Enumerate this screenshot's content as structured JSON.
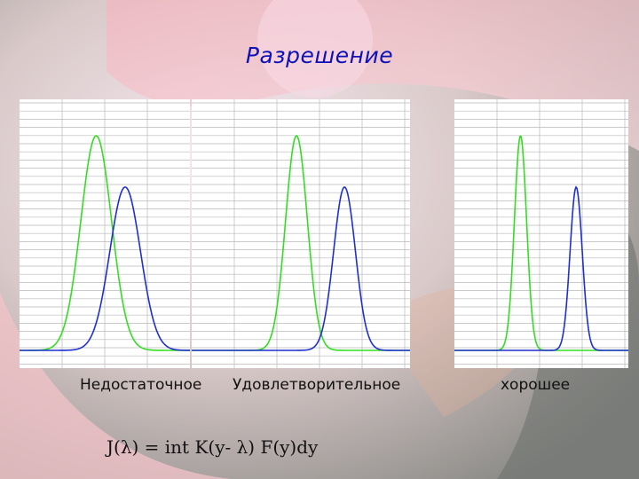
{
  "slide": {
    "title": "Разрешение",
    "formula": "J(λ) = int K(y- λ) F(y)dy"
  },
  "colors": {
    "green_curve": "#33dd22",
    "blue_curve": "#1f2fd0",
    "title": "#0d12b8",
    "grid_line": "#b8b8b8",
    "panel_fill": "#ffffff"
  },
  "panels": [
    {
      "caption": "Недостаточное",
      "curves": [
        {
          "color": "green",
          "center": 0.45,
          "width": 0.09,
          "peak": 0.92
        },
        {
          "color": "blue",
          "center": 0.62,
          "width": 0.09,
          "peak": 0.7
        }
      ]
    },
    {
      "caption": "Удовлетворительное",
      "curves": [
        {
          "color": "green",
          "center": 0.48,
          "width": 0.05,
          "peak": 0.92
        },
        {
          "color": "blue",
          "center": 0.7,
          "width": 0.05,
          "peak": 0.7
        }
      ]
    },
    {
      "caption": "хорошее",
      "curves": [
        {
          "color": "green",
          "center": 0.38,
          "width": 0.035,
          "peak": 0.92
        },
        {
          "color": "blue",
          "center": 0.7,
          "width": 0.035,
          "peak": 0.7
        }
      ]
    }
  ]
}
